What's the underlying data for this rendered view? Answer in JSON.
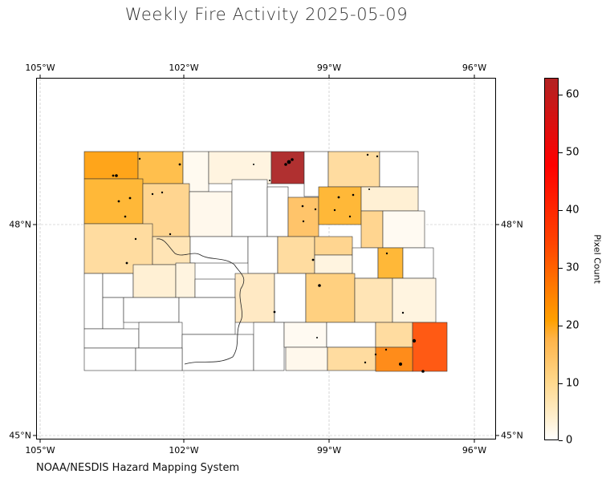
{
  "title": "Weekly Fire Activity 2025-05-09",
  "footer": "NOAA/NESDIS Hazard Mapping System",
  "axes": {
    "lon_ticks": [
      "105°W",
      "102°W",
      "99°W",
      "96°W"
    ],
    "lat_ticks": [
      "48°N",
      "45°N"
    ],
    "lon_range": [
      -105,
      -95.5
    ],
    "lat_range": [
      44.9,
      52.4
    ],
    "grid": "on"
  },
  "colorbar": {
    "label": "Pixel Count",
    "ticks": [
      "0",
      "10",
      "20",
      "30",
      "40",
      "50",
      "60"
    ],
    "range": [
      0,
      63
    ],
    "colors": [
      "#ffffff",
      "#ffd88c",
      "#ffa000",
      "#ff4500",
      "#ff0000",
      "#b22222"
    ]
  },
  "map_data": {
    "region": "North Dakota counties",
    "color_scale": "pixel count",
    "notable_counties": [
      {
        "position": "north-central",
        "level": 62
      },
      {
        "position": "southeast",
        "level": 30
      },
      {
        "position": "northwest",
        "level": 20
      },
      {
        "position": "southeast-inner",
        "level": 25
      }
    ]
  }
}
